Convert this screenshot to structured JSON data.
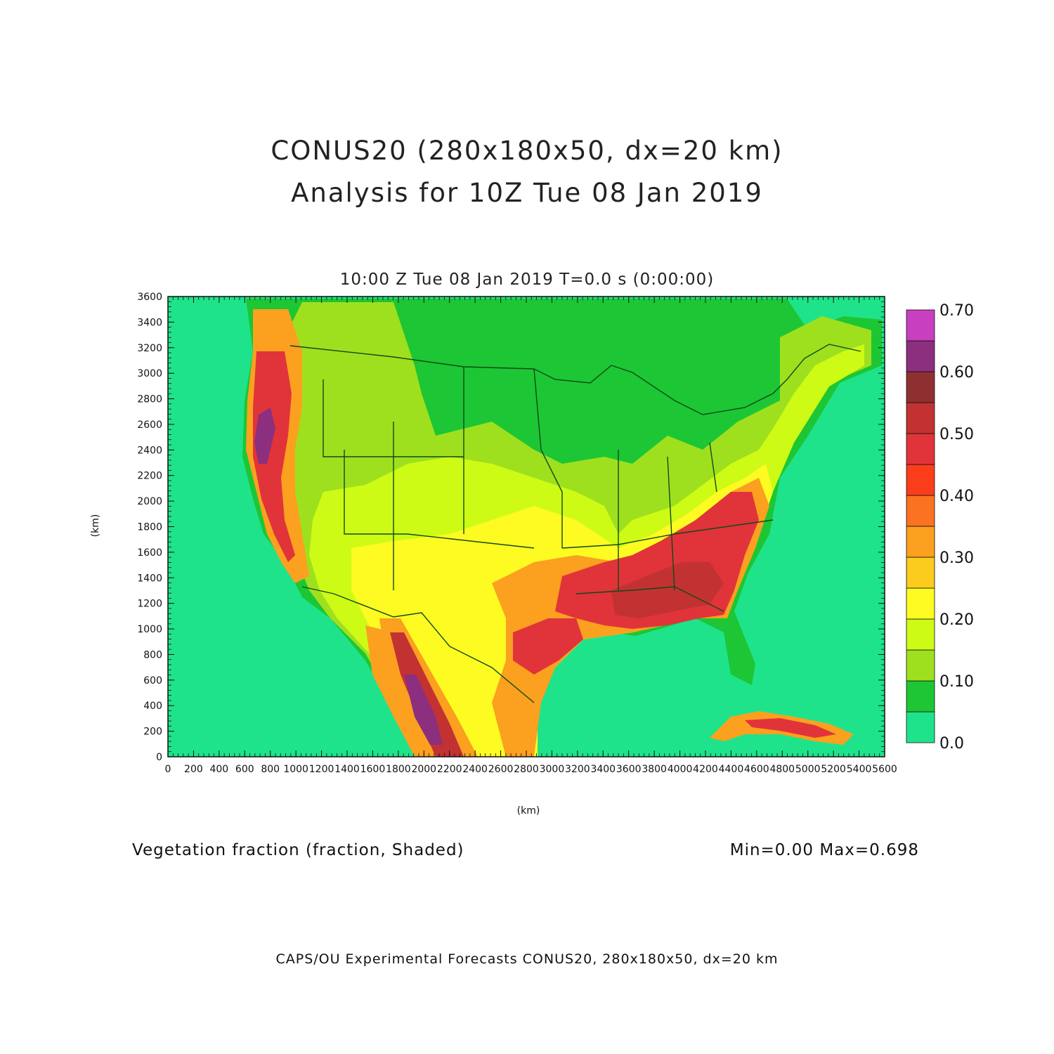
{
  "title_line1": "CONUS20 (280x180x50, dx=20 km)",
  "title_line2": "Analysis for 10Z Tue 08 Jan 2019",
  "subtitle": "10:00 Z Tue 08 Jan 2019    T=0.0 s (0:00:00)",
  "x_axis": {
    "label": "(km)",
    "range": [
      0,
      5600
    ],
    "ticks": [
      "0",
      "200",
      "400",
      "600",
      "800",
      "1000",
      "1200",
      "1400",
      "1600",
      "1800",
      "2000",
      "2200",
      "2400",
      "2600",
      "2800",
      "3000",
      "3200",
      "3400",
      "3600",
      "3800",
      "4000",
      "4200",
      "4400",
      "4600",
      "4800",
      "5000",
      "5200",
      "5400",
      "5600"
    ]
  },
  "y_axis": {
    "label": "(km)",
    "range": [
      0,
      3600
    ],
    "ticks": [
      "0",
      "200",
      "400",
      "600",
      "800",
      "1000",
      "1200",
      "1400",
      "1600",
      "1800",
      "2000",
      "2200",
      "2400",
      "2600",
      "2800",
      "3000",
      "3200",
      "3400",
      "3600"
    ]
  },
  "colorbar": {
    "levels": [
      0.0,
      0.05,
      0.1,
      0.15,
      0.2,
      0.25,
      0.3,
      0.35,
      0.4,
      0.45,
      0.5,
      0.55,
      0.6,
      0.65,
      0.7
    ],
    "colors": [
      "#1fe38b",
      "#1dc634",
      "#9fe01e",
      "#cdfb15",
      "#fdfb22",
      "#fbcb1d",
      "#fba01f",
      "#fb7220",
      "#fb3d1c",
      "#e0343a",
      "#c23232",
      "#8f3030",
      "#8b2f7e",
      "#c83fbf"
    ],
    "labels": [
      "0.0",
      "0.10",
      "0.20",
      "0.30",
      "0.40",
      "0.50",
      "0.60",
      "0.70"
    ]
  },
  "field_label": "Vegetation fraction (fraction, Shaded)",
  "min_max": "Min=0.00 Max=0.698",
  "footer": "CAPS/OU Experimental Forecasts  CONUS20, 280x180x50, dx=20 km"
}
